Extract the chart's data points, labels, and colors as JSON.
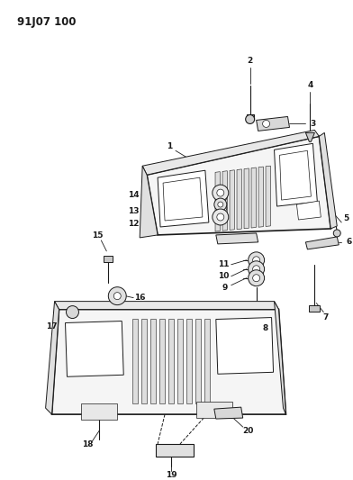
{
  "title": "91J07 100",
  "bg": "#ffffff",
  "lc": "#1a1a1a",
  "tc": "#1a1a1a",
  "fig_w": 3.92,
  "fig_h": 5.33,
  "dpi": 100
}
